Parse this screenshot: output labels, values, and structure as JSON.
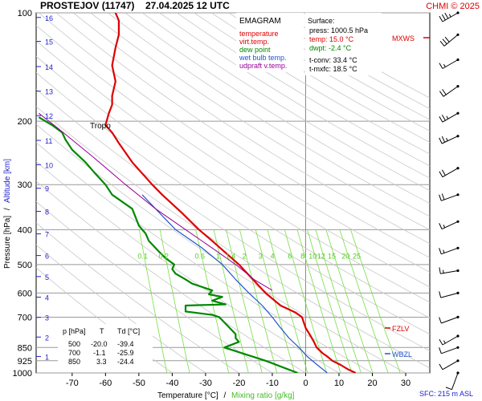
{
  "header": {
    "title": "PROSTEJOV (11747)",
    "datetime": "27.04.2025 12 UTC",
    "credit": "CHMI © 2025"
  },
  "legend": {
    "heading": "EMAGRAM",
    "items": [
      {
        "label": "temperature",
        "color": "#dd0000"
      },
      {
        "label": "virt.temp.",
        "color": "#dd0000"
      },
      {
        "label": "dew point",
        "color": "#008800"
      },
      {
        "label": "wet bulb temp.",
        "color": "#2255cc"
      },
      {
        "label": "udpraft v.temp.",
        "color": "#990099"
      }
    ]
  },
  "surface": {
    "heading": "Surface:",
    "press": "press: 1000.5 hPa",
    "temp": "temp: 15.0 °C",
    "dwpt": "dwpt: -2.4 °C",
    "tconv": "t-conv: 33.4 °C",
    "tmxfc": "t-mxfc: 18.5 °C"
  },
  "table": {
    "headers": [
      "p [hPa]",
      "T",
      "Td [°C]"
    ],
    "rows": [
      [
        "500",
        "-20.0",
        "-39.4"
      ],
      [
        "700",
        "-1.1",
        "-25.9"
      ],
      [
        "850",
        "3.3",
        "-24.4"
      ]
    ]
  },
  "labels": {
    "tropo": "Tropo",
    "mxws": "MXWS",
    "fzlv": "FZLV",
    "wbzl": "WBZL",
    "sfc": "SFC: 215 m ASL",
    "x_axis_temp": "Temperature [°C]",
    "x_axis_sep": "/",
    "x_axis_mix": "Mixing ratio [g/kg]",
    "y_axis_pressure": "Pressure [hPa]",
    "y_axis_sep": "/",
    "y_axis_alt": "Altitude [km]"
  },
  "colors": {
    "temperature": "#dd0000",
    "dewpoint": "#008800",
    "wetbulb": "#2255cc",
    "updraft": "#990099",
    "mixing_ratio": "#77dd44",
    "altitude": "#2222cc",
    "wind_barb": "#000000"
  },
  "chart_data": {
    "type": "line",
    "diagram": "emagram",
    "y_scale": "log",
    "xlim": [
      -80,
      35
    ],
    "ylim": [
      1000,
      100
    ],
    "x_ticks": [
      -70,
      -60,
      -50,
      -40,
      -30,
      -20,
      -10,
      0,
      10,
      20,
      30
    ],
    "pressure_ticks": [
      100,
      200,
      300,
      400,
      500,
      600,
      700,
      850,
      925,
      1000
    ],
    "altitude_ticks_km": [
      {
        "label": "1",
        "p": 900
      },
      {
        "label": "2",
        "p": 795
      },
      {
        "label": "3",
        "p": 701
      },
      {
        "label": "4",
        "p": 616
      },
      {
        "label": "5",
        "p": 540
      },
      {
        "label": "6",
        "p": 472
      },
      {
        "label": "7",
        "p": 411
      },
      {
        "label": "8",
        "p": 356
      },
      {
        "label": "9",
        "p": 307
      },
      {
        "label": "10",
        "p": 264
      },
      {
        "label": "11",
        "p": 226
      },
      {
        "label": "12",
        "p": 193
      },
      {
        "label": "13",
        "p": 165
      },
      {
        "label": "14",
        "p": 141
      },
      {
        "label": "15",
        "p": 120
      },
      {
        "label": "16",
        "p": 103
      }
    ],
    "mixing_ratio_labels": [
      "0.1",
      "0.2",
      "0.6",
      "1",
      "1.4",
      "2",
      "3",
      "4",
      "6",
      "8",
      "10",
      "12",
      "15",
      "20",
      "25"
    ],
    "mixing_ratio_values": [
      0.1,
      0.2,
      0.6,
      1,
      1.4,
      2,
      3,
      4,
      6,
      8,
      10,
      12,
      15,
      20,
      25
    ],
    "series": [
      {
        "name": "temperature",
        "points": [
          [
            15.0,
            1000
          ],
          [
            12.5,
            975
          ],
          [
            10.5,
            950
          ],
          [
            8.0,
            925
          ],
          [
            6.5,
            900
          ],
          [
            5.0,
            880
          ],
          [
            3.3,
            850
          ],
          [
            2.5,
            820
          ],
          [
            1.5,
            790
          ],
          [
            0.0,
            750
          ],
          [
            -1.1,
            700
          ],
          [
            -3.0,
            680
          ],
          [
            -7.5,
            650
          ],
          [
            -12.0,
            600
          ],
          [
            -20.0,
            500
          ],
          [
            -28.0,
            430
          ],
          [
            -32.0,
            400
          ],
          [
            -37.0,
            360
          ],
          [
            -43.0,
            320
          ],
          [
            -46.0,
            300
          ],
          [
            -52.0,
            260
          ],
          [
            -56.0,
            230
          ],
          [
            -58.0,
            215
          ],
          [
            -60.0,
            205
          ],
          [
            -59.0,
            190
          ],
          [
            -58.0,
            180
          ],
          [
            -58.0,
            170
          ],
          [
            -57.0,
            155
          ],
          [
            -58.0,
            140
          ],
          [
            -57.0,
            125
          ],
          [
            -56.0,
            115
          ],
          [
            -56.0,
            105
          ],
          [
            -57.0,
            100
          ]
        ]
      },
      {
        "name": "dew point",
        "points": [
          [
            -2.4,
            1000
          ],
          [
            -12.0,
            925
          ],
          [
            -24.4,
            850
          ],
          [
            -20.0,
            820
          ],
          [
            -21.0,
            800
          ],
          [
            -21.0,
            780
          ],
          [
            -25.9,
            700
          ],
          [
            -28.0,
            690
          ],
          [
            -36.0,
            675
          ],
          [
            -36.0,
            650
          ],
          [
            -24.0,
            645
          ],
          [
            -28.0,
            630
          ],
          [
            -25.0,
            615
          ],
          [
            -29.0,
            605
          ],
          [
            -28.0,
            590
          ],
          [
            -34.0,
            565
          ],
          [
            -36.0,
            550
          ],
          [
            -39.0,
            530
          ],
          [
            -40.0,
            515
          ],
          [
            -39.4,
            500
          ],
          [
            -42.0,
            480
          ],
          [
            -44.0,
            460
          ],
          [
            -47.0,
            430
          ],
          [
            -48.0,
            410
          ],
          [
            -50.0,
            390
          ],
          [
            -52.0,
            350
          ],
          [
            -58.0,
            320
          ],
          [
            -60.0,
            300
          ],
          [
            -63.0,
            280
          ],
          [
            -66.0,
            260
          ],
          [
            -70.0,
            240
          ],
          [
            -72.0,
            225
          ],
          [
            -73.0,
            215
          ],
          [
            -76.0,
            205
          ],
          [
            -80.0,
            195
          ]
        ]
      },
      {
        "name": "wet bulb temp.",
        "points": [
          [
            6.5,
            1000
          ],
          [
            3.5,
            950
          ],
          [
            0.5,
            900
          ],
          [
            -2.0,
            850
          ],
          [
            -5.0,
            800
          ],
          [
            -8.0,
            740
          ],
          [
            -10.0,
            700
          ],
          [
            -13.0,
            650
          ],
          [
            -17.0,
            600
          ],
          [
            -21.0,
            550
          ],
          [
            -25.0,
            500
          ],
          [
            -31.0,
            450
          ],
          [
            -39.0,
            400
          ],
          [
            -45.0,
            350
          ],
          [
            -49.0,
            320
          ]
        ]
      },
      {
        "name": "udpraft v.temp.",
        "points": [
          [
            -10.0,
            590
          ],
          [
            -15.5,
            550
          ],
          [
            -21.0,
            500
          ],
          [
            -28.0,
            450
          ],
          [
            -36.0,
            400
          ],
          [
            -45.0,
            350
          ],
          [
            -54.0,
            300
          ],
          [
            -64.0,
            250
          ],
          [
            -74.0,
            210
          ],
          [
            -80.0,
            190
          ]
        ]
      }
    ],
    "wind_barbs": [
      {
        "p": 1000,
        "dir": 200,
        "spd": 10
      },
      {
        "p": 925,
        "dir": 240,
        "spd": 10
      },
      {
        "p": 850,
        "dir": 250,
        "spd": 10
      },
      {
        "p": 790,
        "dir": 240,
        "spd": 15
      },
      {
        "p": 700,
        "dir": 250,
        "spd": 10
      },
      {
        "p": 600,
        "dir": 255,
        "spd": 10
      },
      {
        "p": 520,
        "dir": 260,
        "spd": 15
      },
      {
        "p": 450,
        "dir": 250,
        "spd": 15
      },
      {
        "p": 380,
        "dir": 245,
        "spd": 15
      },
      {
        "p": 320,
        "dir": 250,
        "spd": 20
      },
      {
        "p": 270,
        "dir": 240,
        "spd": 20
      },
      {
        "p": 220,
        "dir": 245,
        "spd": 25
      },
      {
        "p": 190,
        "dir": 240,
        "spd": 25
      },
      {
        "p": 160,
        "dir": 235,
        "spd": 20
      },
      {
        "p": 135,
        "dir": 240,
        "spd": 15
      },
      {
        "p": 115,
        "dir": 230,
        "spd": 30
      },
      {
        "p": 100,
        "dir": 240,
        "spd": 35
      }
    ]
  }
}
